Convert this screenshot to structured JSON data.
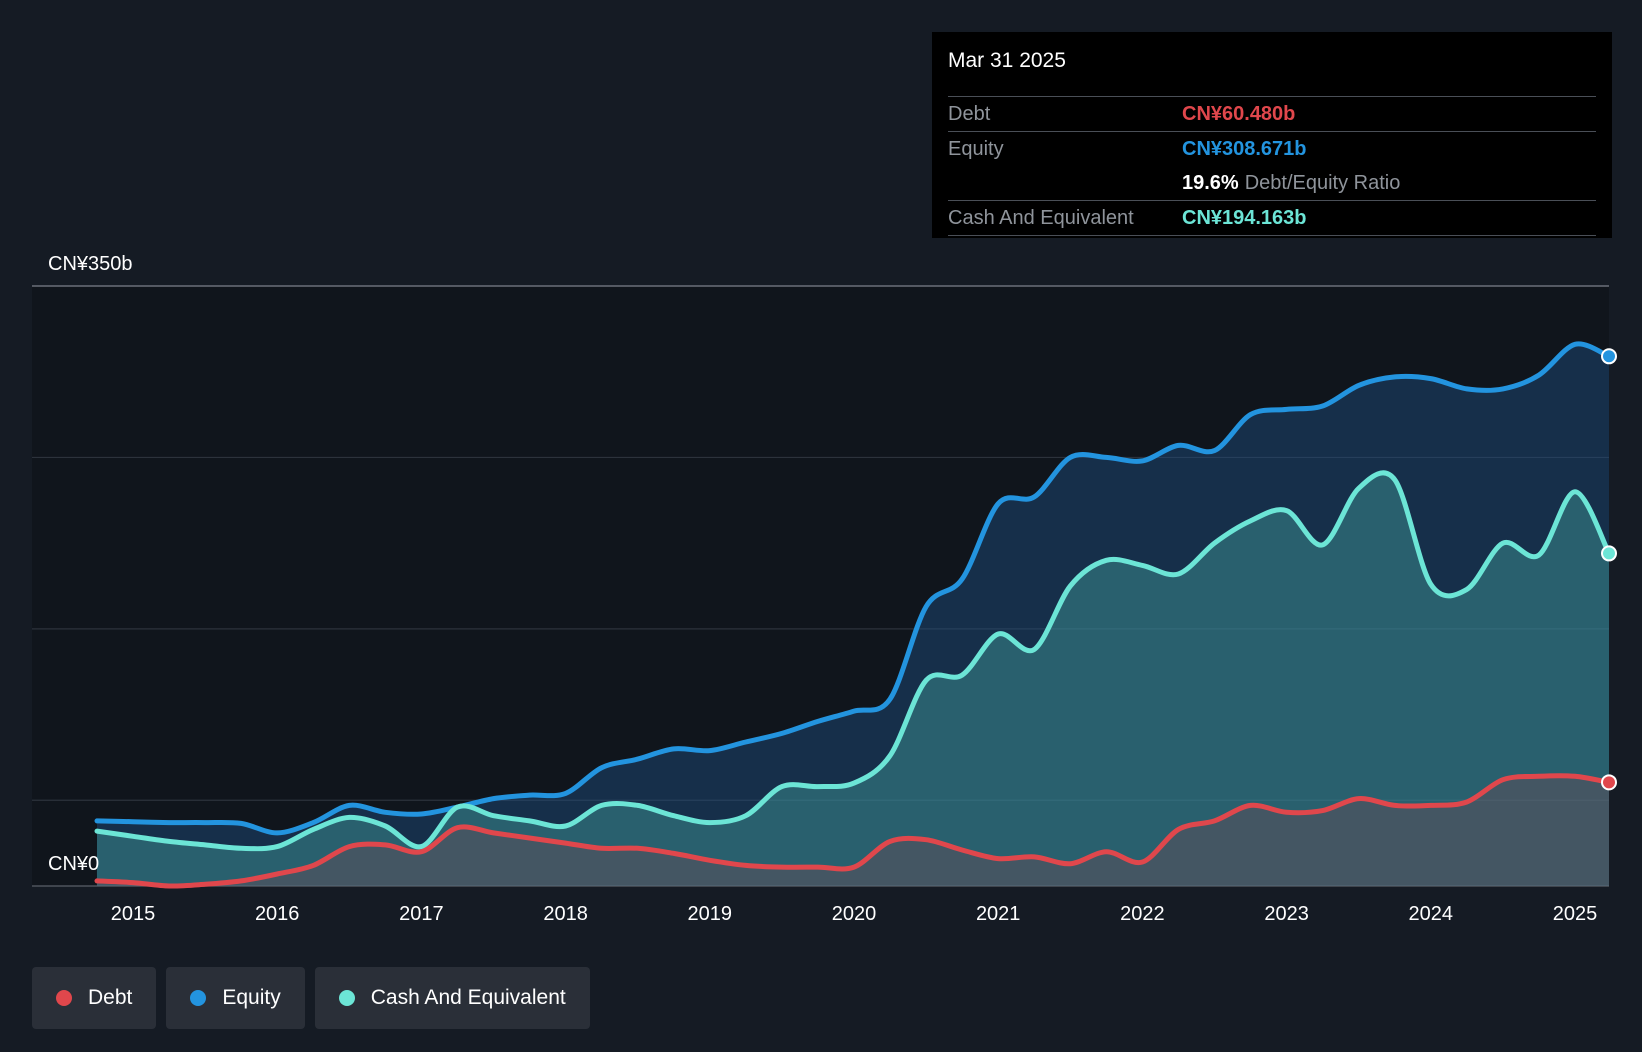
{
  "tooltip": {
    "date": "Mar 31 2025",
    "debt_label": "Debt",
    "debt_value": "CN¥60.480b",
    "equity_label": "Equity",
    "equity_value": "CN¥308.671b",
    "ratio_value": "19.6%",
    "ratio_label": "Debt/Equity Ratio",
    "cash_label": "Cash And Equivalent",
    "cash_value": "CN¥194.163b"
  },
  "legend": {
    "debt": "Debt",
    "equity": "Equity",
    "cash": "Cash And Equivalent"
  },
  "colors": {
    "debt": "#e0474c",
    "equity": "#2394df",
    "cash": "#6ce5d6",
    "background": "#151b24",
    "plot_background": "#10151c"
  },
  "chart_data": {
    "type": "area",
    "title": "",
    "xlabel": "",
    "ylabel": "",
    "y_top_label": "CN¥350b",
    "y_bottom_label": "CN¥0",
    "ylim": [
      0,
      350
    ],
    "xlim": [
      2014.6,
      2025.25
    ],
    "x_ticks": [
      "2015",
      "2016",
      "2017",
      "2018",
      "2019",
      "2020",
      "2021",
      "2022",
      "2023",
      "2024",
      "2025"
    ],
    "series": [
      {
        "name": "Equity",
        "x": [
          2014.75,
          2015.0,
          2015.25,
          2015.5,
          2015.75,
          2016.0,
          2016.25,
          2016.5,
          2016.75,
          2017.0,
          2017.25,
          2017.5,
          2017.75,
          2018.0,
          2018.25,
          2018.5,
          2018.75,
          2019.0,
          2019.25,
          2019.5,
          2019.75,
          2020.0,
          2020.25,
          2020.5,
          2020.75,
          2021.0,
          2021.25,
          2021.5,
          2021.75,
          2022.0,
          2022.25,
          2022.5,
          2022.75,
          2023.0,
          2023.25,
          2023.5,
          2023.75,
          2024.0,
          2024.25,
          2024.5,
          2024.75,
          2025.0,
          2025.25
        ],
        "values": [
          38,
          37.5,
          37,
          37,
          36.5,
          31,
          37,
          47,
          43,
          42,
          46,
          51,
          53,
          54,
          69,
          74,
          80,
          79,
          84,
          89,
          96,
          102,
          109,
          163,
          179,
          223,
          227,
          250,
          250,
          248,
          257,
          254,
          275,
          278,
          280,
          292,
          297,
          296,
          290,
          290,
          298,
          316,
          309
        ]
      },
      {
        "name": "Cash And Equivalent",
        "x": [
          2014.75,
          2015.0,
          2015.25,
          2015.5,
          2015.75,
          2016.0,
          2016.25,
          2016.5,
          2016.75,
          2017.0,
          2017.25,
          2017.5,
          2017.75,
          2018.0,
          2018.25,
          2018.5,
          2018.75,
          2019.0,
          2019.25,
          2019.5,
          2019.75,
          2020.0,
          2020.25,
          2020.5,
          2020.75,
          2021.0,
          2021.25,
          2021.5,
          2021.75,
          2022.0,
          2022.25,
          2022.5,
          2022.75,
          2023.0,
          2023.25,
          2023.5,
          2023.75,
          2024.0,
          2024.25,
          2024.5,
          2024.75,
          2025.0,
          2025.25
        ],
        "values": [
          32,
          29,
          26,
          24,
          22,
          23,
          33,
          40,
          35,
          23,
          46,
          41,
          38,
          35,
          47,
          47,
          41,
          37,
          41,
          58,
          58,
          60,
          76,
          120,
          123,
          147,
          138,
          175,
          190,
          187,
          182,
          200,
          213,
          219,
          199,
          232,
          237,
          176,
          173,
          200,
          193,
          230,
          194
        ]
      },
      {
        "name": "Debt",
        "x": [
          2014.75,
          2015.0,
          2015.25,
          2015.5,
          2015.75,
          2016.0,
          2016.25,
          2016.5,
          2016.75,
          2017.0,
          2017.25,
          2017.5,
          2017.75,
          2018.0,
          2018.25,
          2018.5,
          2018.75,
          2019.0,
          2019.25,
          2019.5,
          2019.75,
          2020.0,
          2020.25,
          2020.5,
          2020.75,
          2021.0,
          2021.25,
          2021.5,
          2021.75,
          2022.0,
          2022.25,
          2022.5,
          2022.75,
          2023.0,
          2023.25,
          2023.5,
          2023.75,
          2024.0,
          2024.25,
          2024.5,
          2024.75,
          2025.0,
          2025.25
        ],
        "values": [
          3,
          2,
          0,
          1,
          3,
          7,
          12,
          23,
          24,
          20,
          34,
          31,
          28,
          25,
          22,
          22,
          19,
          15,
          12,
          11,
          11,
          11,
          26,
          27,
          21,
          16,
          17,
          13,
          20,
          14,
          33,
          38,
          47,
          43,
          44,
          51,
          47,
          47,
          49,
          62,
          64,
          64,
          60.48
        ]
      }
    ]
  }
}
